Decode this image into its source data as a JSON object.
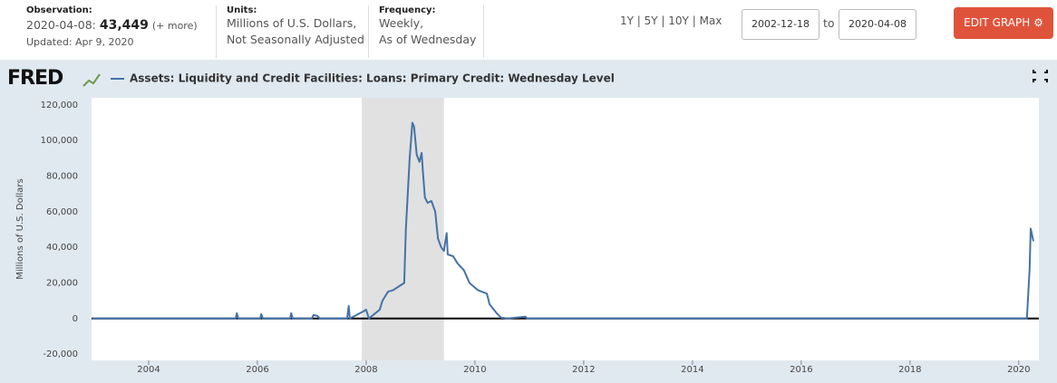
{
  "header": {
    "observation_label": "Observation:",
    "observation_date": "2020-04-08:",
    "observation_value": "43,449",
    "more": "(+ more)",
    "updated": "Updated: Apr 9, 2020",
    "units_label": "Units:",
    "units_line1": "Millions of U.S. Dollars,",
    "units_line2": "Not Seasonally Adjusted",
    "frequency_label": "Frequency:",
    "frequency_line1": "Weekly,",
    "frequency_line2": "As of Wednesday"
  },
  "controls": {
    "ranges": [
      "1Y",
      "5Y",
      "10Y",
      "Max"
    ],
    "start_date": "2002-12-18",
    "to": "to",
    "end_date": "2020-04-08",
    "edit_button": "EDIT GRAPH"
  },
  "chart_data": {
    "type": "line",
    "logo": "FRED",
    "ylabel": "Millions of U.S. Dollars",
    "x": [
      2002.96,
      2005.6,
      2005.62,
      2005.65,
      2006.05,
      2006.07,
      2006.1,
      2006.6,
      2006.62,
      2006.65,
      2007.0,
      2007.03,
      2007.1,
      2007.15,
      2007.65,
      2007.68,
      2007.7,
      2007.95,
      2008.0,
      2008.05,
      2008.25,
      2008.3,
      2008.4,
      2008.5,
      2008.6,
      2008.7,
      2008.73,
      2008.8,
      2008.85,
      2008.88,
      2008.93,
      2008.98,
      2009.02,
      2009.05,
      2009.08,
      2009.13,
      2009.2,
      2009.27,
      2009.32,
      2009.38,
      2009.43,
      2009.48,
      2009.5,
      2009.6,
      2009.68,
      2009.8,
      2009.9,
      2010.05,
      2010.22,
      2010.27,
      2010.4,
      2010.48,
      2010.6,
      2010.93,
      2010.96,
      2020.15,
      2020.2,
      2020.22,
      2020.27
    ],
    "series": [
      {
        "name": "Assets: Liquidity and Credit Facilities: Loans: Primary Credit: Wednesday Level",
        "color": "#4572a7",
        "values": [
          0,
          0,
          3000,
          0,
          0,
          2500,
          0,
          0,
          3000,
          0,
          0,
          2000,
          1500,
          0,
          0,
          7000,
          0,
          4000,
          5000,
          0,
          5000,
          10000,
          15000,
          16000,
          18000,
          20000,
          50000,
          90000,
          110000,
          108000,
          92000,
          88000,
          93000,
          80000,
          68000,
          65000,
          66000,
          60000,
          45000,
          40000,
          38000,
          48000,
          36000,
          35000,
          31000,
          27000,
          20000,
          16000,
          14000,
          8000,
          3000,
          500,
          0,
          1000,
          0,
          0,
          28000,
          50500,
          43449
        ]
      }
    ],
    "recession": [
      2007.92,
      2009.43
    ],
    "xlim": [
      2002.95,
      2020.37
    ],
    "xticks": [
      2004,
      2006,
      2008,
      2010,
      2012,
      2014,
      2016,
      2018,
      2020
    ],
    "ylim": [
      -23500,
      124000
    ],
    "yticks": [
      {
        "value": -20000,
        "label": "-20,000"
      },
      0,
      {
        "value": 20000,
        "label": "20,000"
      },
      {
        "value": 40000,
        "label": "40,000"
      },
      {
        "value": 60000,
        "label": "60,000"
      },
      {
        "value": 80000,
        "label": "80,000"
      },
      {
        "value": 100000,
        "label": "100,000"
      },
      {
        "value": 120000,
        "label": "120,000"
      }
    ],
    "grid": false,
    "zero_line": true
  }
}
